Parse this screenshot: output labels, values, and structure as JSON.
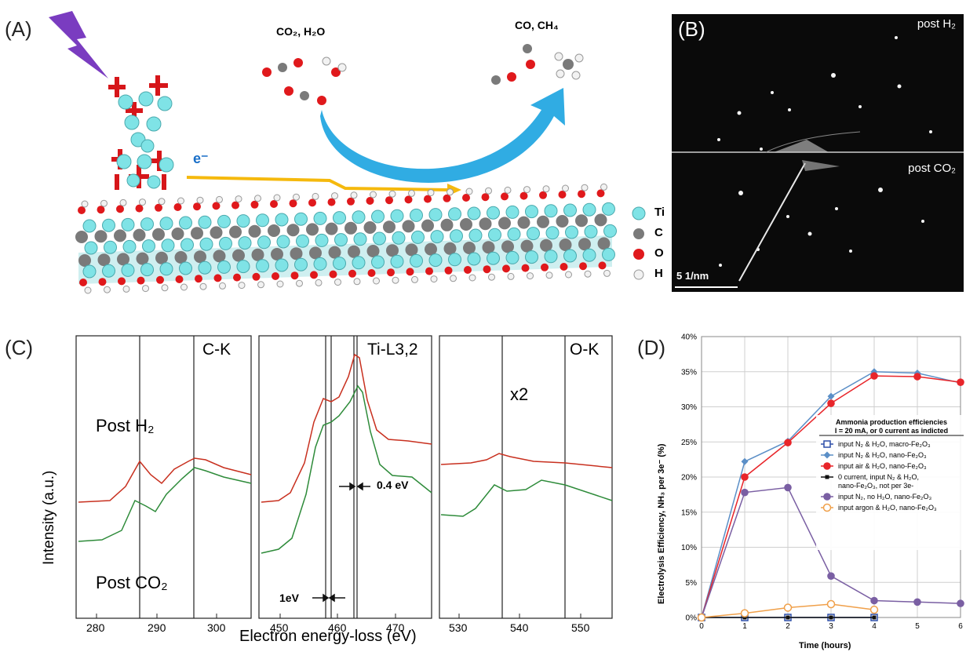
{
  "panels": {
    "A": "(A)",
    "B": "(B)",
    "C": "(C)",
    "D": "(D)"
  },
  "panel_a": {
    "reactants": "CO₂, H₂O",
    "products": "CO, CH₄",
    "electron": "e⁻",
    "legend": [
      "Ti",
      "C",
      "O",
      "H"
    ],
    "colors": {
      "Ti": "#7fe3e6",
      "C": "#7a7a7a",
      "O": "#e0191c",
      "H": "#f2f2f2",
      "arrow_blue": "#1aa3e0",
      "arrow_yellow": "#f5b90d",
      "lightning": "#7a3cc0"
    }
  },
  "panel_b": {
    "top_label": "post H₂",
    "bottom_label": "post CO₂",
    "scale_bar": "5 1/nm"
  },
  "panel_c": {
    "ylabel": "Intensity (a.u.)",
    "xlabel": "Electron energy-loss (eV)",
    "post_h2": "Post H₂",
    "post_co2": "Post CO₂",
    "sub1": {
      "title": "C-K",
      "ticks": [
        "280",
        "290",
        "300"
      ]
    },
    "sub2": {
      "title": "Ti-L3,2",
      "ticks": [
        "450",
        "460",
        "470"
      ],
      "ann1": "1eV",
      "ann2": "0.4 eV"
    },
    "sub3": {
      "title": "O-K",
      "ticks": [
        "530",
        "540",
        "550"
      ],
      "ann": "x2"
    },
    "colors": {
      "post_h2": "#c8301f",
      "post_co2": "#2e8b3a"
    }
  },
  "chart_data": {
    "type": "line",
    "xlabel": "Time (hours)",
    "ylabel": "Electrolysis Efficiency, NH₃ per 3e⁻ (%)",
    "x_ticks": [
      0,
      1,
      2,
      3,
      4,
      5,
      6
    ],
    "y_ticks": [
      "0%",
      "5%",
      "10%",
      "15%",
      "20%",
      "25%",
      "30%",
      "35%",
      "40%"
    ],
    "xlim": [
      0,
      6
    ],
    "ylim": [
      0,
      40
    ],
    "legend_title": "Ammonia production efficiencies",
    "legend_subtitle": "I = 20 mA, or 0 current as indicted",
    "series": [
      {
        "name": "input N₂ & H₂O, macro-Fe₂O₃",
        "color": "#2d4ea8",
        "marker": "square-open",
        "x": [
          0,
          1,
          2,
          3,
          4
        ],
        "y": [
          0,
          0,
          0,
          0,
          0
        ]
      },
      {
        "name": "input N₂ & H₂O, nano-Fe₂O₃",
        "color": "#5b8fc7",
        "marker": "diamond",
        "x": [
          0,
          1,
          2,
          3,
          4,
          5,
          6
        ],
        "y": [
          0,
          22.2,
          25.1,
          31.5,
          35.0,
          34.8,
          33.4
        ]
      },
      {
        "name": "input air & H₂O, nano-Fe₂O₃",
        "color": "#e8252a",
        "marker": "circle",
        "x": [
          0,
          1,
          2,
          3,
          4,
          5,
          6
        ],
        "y": [
          0,
          20.0,
          24.9,
          30.5,
          34.4,
          34.3,
          33.5
        ]
      },
      {
        "name": "0 current, input N₂ & H₂O, nano-Fe₂O₃, not per 3e-",
        "color": "#111111",
        "marker": "square-small",
        "x": [
          0,
          1,
          2,
          3,
          4
        ],
        "y": [
          0,
          0,
          0,
          0,
          0
        ]
      },
      {
        "name": "input N₂, no H₂O, nano-Fe₂O₃",
        "color": "#7a5fa3",
        "marker": "circle",
        "x": [
          0,
          1,
          2,
          3,
          4,
          5,
          6
        ],
        "y": [
          0,
          17.8,
          18.5,
          5.9,
          2.4,
          2.2,
          2.0
        ]
      },
      {
        "name": "input argon & H₂O, nano-Fe₂O₃",
        "color": "#f0a04a",
        "marker": "circle-open",
        "x": [
          0,
          1,
          2,
          3,
          4
        ],
        "y": [
          0,
          0.6,
          1.4,
          1.9,
          1.1
        ]
      }
    ],
    "grid": true,
    "legend_position": "right"
  }
}
